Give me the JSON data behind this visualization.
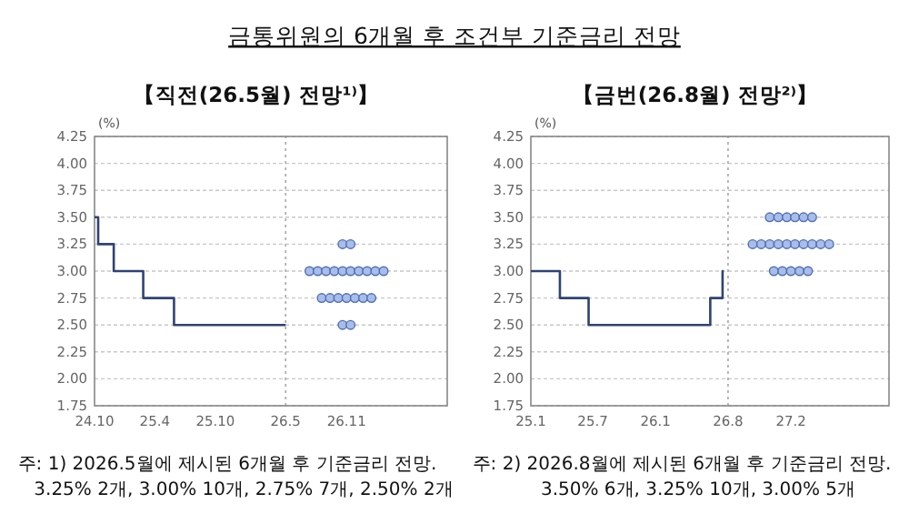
{
  "chart_data": [
    {
      "type": "scatter",
      "title": "금통위원의 6개월 후 조건부 기준금리 전망",
      "subtitle": "【직전(26.5월) 전망¹⁾】",
      "ylabel": "(%)",
      "xlim": [
        "2024-10",
        "2027-09"
      ],
      "xticks": [
        {
          "value": "2024-10",
          "label": "24.10"
        },
        {
          "value": "2025-04",
          "label": "25.4"
        },
        {
          "value": "2025-10",
          "label": "25.10"
        },
        {
          "value": "2026-05",
          "label": "26.5"
        },
        {
          "value": "2026-11",
          "label": "26.11"
        }
      ],
      "ylim": [
        1.75,
        4.25
      ],
      "yticks": [
        {
          "value": 1.75,
          "label": "1.75"
        },
        {
          "value": 2,
          "label": "2.00"
        },
        {
          "value": 2.25,
          "label": "2.25"
        },
        {
          "value": 2.5,
          "label": "2.50"
        },
        {
          "value": 2.75,
          "label": "2.75"
        },
        {
          "value": 3,
          "label": "3.00"
        },
        {
          "value": 3.25,
          "label": "3.25"
        },
        {
          "value": 3.5,
          "label": "3.50"
        },
        {
          "value": 3.75,
          "label": "3.75"
        },
        {
          "value": 4,
          "label": "4.00"
        },
        {
          "value": 4.25,
          "label": "4.25"
        }
      ],
      "grid": "y",
      "ref_lines": [
        {
          "axis": "x",
          "value": "2026-05",
          "color": "#b0b0b0",
          "line_style": "dotted"
        }
      ],
      "series": [
        {
          "type": "step",
          "color": "#2f4373",
          "x": [
            "2024-10-01",
            "2024-10-12",
            "2024-11-28",
            "2025-02-25",
            "2025-05-29",
            "2026-05-01"
          ],
          "values": [
            3.5,
            3.25,
            3.0,
            2.75,
            2.5,
            2.5
          ]
        },
        {
          "color": "#a9bde9",
          "marker": "circle",
          "x": [
            "2026-10-20",
            "2026-11-13",
            "2026-07-12",
            "2026-08-06",
            "2026-08-31",
            "2026-09-25",
            "2026-10-20",
            "2026-11-13",
            "2026-12-08",
            "2027-01-02",
            "2027-01-27",
            "2027-02-21",
            "2026-08-18",
            "2026-09-12",
            "2026-10-07",
            "2026-11-01",
            "2026-11-26",
            "2026-12-21",
            "2027-01-15",
            "2026-10-20",
            "2026-11-13"
          ],
          "values": [
            3.25,
            3.25,
            3.0,
            3.0,
            3.0,
            3.0,
            3.0,
            3.0,
            3.0,
            3.0,
            3.0,
            3.0,
            2.75,
            2.75,
            2.75,
            2.75,
            2.75,
            2.75,
            2.75,
            2.5,
            2.5
          ]
        }
      ],
      "annotations": [
        "주: 1) 2026.5월에 제시된 6개월 후 기준금리 전망.",
        "3.25% 2개,  3.00% 10개,  2.75% 7개,  2.50% 2개"
      ]
    },
    {
      "type": "scatter",
      "subtitle": "【금번(26.8월) 전망²⁾】",
      "ylabel": "(%)",
      "xlim": [
        "2025-01",
        "2027-11-15"
      ],
      "xticks": [
        {
          "value": "2025-01",
          "label": "25.1"
        },
        {
          "value": "2025-07",
          "label": "25.7"
        },
        {
          "value": "2026-01",
          "label": "26.1"
        },
        {
          "value": "2026-08",
          "label": "26.8"
        },
        {
          "value": "2027-02",
          "label": "27.2"
        }
      ],
      "ylim": [
        1.75,
        4.25
      ],
      "yticks": [
        {
          "value": 1.75,
          "label": "1.75"
        },
        {
          "value": 2,
          "label": "2.00"
        },
        {
          "value": 2.25,
          "label": "2.25"
        },
        {
          "value": 2.5,
          "label": "2.50"
        },
        {
          "value": 2.75,
          "label": "2.75"
        },
        {
          "value": 3,
          "label": "3.00"
        },
        {
          "value": 3.25,
          "label": "3.25"
        },
        {
          "value": 3.5,
          "label": "3.50"
        },
        {
          "value": 3.75,
          "label": "3.75"
        },
        {
          "value": 4,
          "label": "4.00"
        },
        {
          "value": 4.25,
          "label": "4.25"
        }
      ],
      "grid": "y",
      "ref_lines": [
        {
          "axis": "x",
          "value": "2026-08",
          "color": "#b0b0b0",
          "line_style": "dotted"
        }
      ],
      "series": [
        {
          "type": "step",
          "color": "#2f4373",
          "x": [
            "2025-01-01",
            "2025-03-27",
            "2025-06-19",
            "2026-06-10",
            "2026-07-16",
            "2026-07-19"
          ],
          "values": [
            3.0,
            2.75,
            2.5,
            2.75,
            3.0,
            3.0
          ]
        },
        {
          "color": "#a9bde9",
          "marker": "circle",
          "x": [
            "2026-12-01",
            "2026-12-26",
            "2027-01-20",
            "2027-02-13",
            "2027-03-10",
            "2027-04-04",
            "2026-10-12",
            "2026-11-06",
            "2026-12-01",
            "2026-12-26",
            "2027-01-20",
            "2027-02-13",
            "2027-03-10",
            "2027-04-04",
            "2027-04-29",
            "2027-05-24",
            "2026-12-13",
            "2027-01-07",
            "2027-02-01",
            "2027-02-26",
            "2027-03-23"
          ],
          "values": [
            3.5,
            3.5,
            3.5,
            3.5,
            3.5,
            3.5,
            3.25,
            3.25,
            3.25,
            3.25,
            3.25,
            3.25,
            3.25,
            3.25,
            3.25,
            3.25,
            3.0,
            3.0,
            3.0,
            3.0,
            3.0
          ]
        }
      ],
      "annotations": [
        "주: 2) 2026.8월에 제시된 6개월 후 기준금리 전망.",
        "3.50%  6개,   3.25% 10개,  3.00% 5개"
      ]
    }
  ]
}
